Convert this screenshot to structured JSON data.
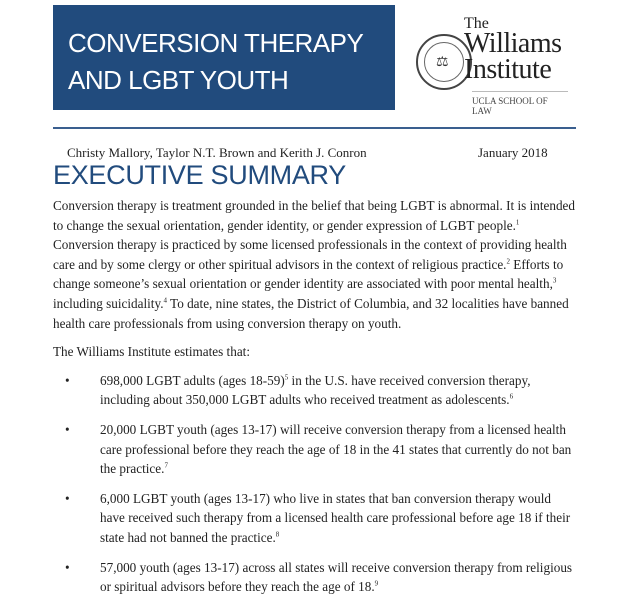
{
  "banner": {
    "line1": "CONVERSION THERAPY",
    "line2": "AND LGBT YOUTH"
  },
  "logo": {
    "the": "The",
    "williams": "Williams",
    "institute": "Institute",
    "school": "UCLA SCHOOL OF LAW"
  },
  "authors": "Christy Mallory, Taylor N.T. Brown and Kerith J. Conron",
  "date": "January 2018",
  "heading": "EXECUTIVE SUMMARY",
  "intro": [
    {
      "t": "Conversion therapy is treatment grounded in the belief that being LGBT is abnormal. It is intended to change the sexual orientation, gender identity, or gender expression of LGBT people.",
      "fn": "1"
    },
    {
      "t": " Conversion therapy is practiced by some licensed professionals in the context of providing health care and by some clergy or other spiritual advisors in the context of religious practice.",
      "fn": "2"
    },
    {
      "t": " Efforts to change someone’s sexual orientation or gender identity are associated with poor mental health,",
      "fn": "3"
    },
    {
      "t": " including suicidality.",
      "fn": "4"
    },
    {
      "t": " To date, nine states, the District of Columbia, and 32 localities have banned health care professionals from using conversion therapy on youth.",
      "fn": ""
    }
  ],
  "estimates_lead": "The Williams Institute estimates that:",
  "bullets": [
    {
      "a": "698,000 LGBT adults (ages 18-59)",
      "fa": "5",
      "b": " in the U.S. have received conversion therapy, including about 350,000 LGBT adults who received treatment as adolescents.",
      "fb": "6"
    },
    {
      "a": "20,000 LGBT youth (ages 13-17) will receive conversion therapy from a licensed health care professional before they reach the age of 18 in the 41 states that currently do not ban the practice.",
      "fa": "7",
      "b": "",
      "fb": ""
    },
    {
      "a": "6,000 LGBT youth (ages 13-17) who live in states that ban conversion therapy would have received such therapy from a licensed health care professional before age 18 if their state had not banned the practice.",
      "fa": "8",
      "b": "",
      "fb": ""
    },
    {
      "a": "57,000 youth (ages 13-17) across all states will receive conversion therapy from religious or spiritual advisors before they reach the age of 18.",
      "fa": "9",
      "b": "",
      "fb": ""
    }
  ]
}
